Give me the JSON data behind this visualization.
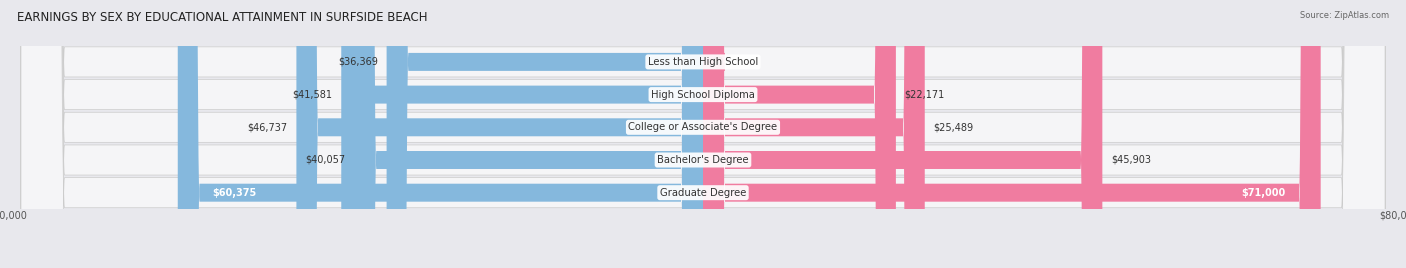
{
  "title": "EARNINGS BY SEX BY EDUCATIONAL ATTAINMENT IN SURFSIDE BEACH",
  "source": "Source: ZipAtlas.com",
  "categories": [
    "Less than High School",
    "High School Diploma",
    "College or Associate's Degree",
    "Bachelor's Degree",
    "Graduate Degree"
  ],
  "male_values": [
    36369,
    41581,
    46737,
    40057,
    60375
  ],
  "female_values": [
    0,
    22171,
    25489,
    45903,
    71000
  ],
  "male_color": "#85b8dd",
  "female_color": "#f07ca0",
  "max_value": 80000,
  "bar_height": 0.55,
  "background_color": "#e8e8ed",
  "row_bg": "#f5f5f7",
  "title_fontsize": 8.5,
  "label_fontsize": 7.2,
  "value_fontsize": 7.0,
  "legend_fontsize": 7.5,
  "axis_fontsize": 7.0
}
